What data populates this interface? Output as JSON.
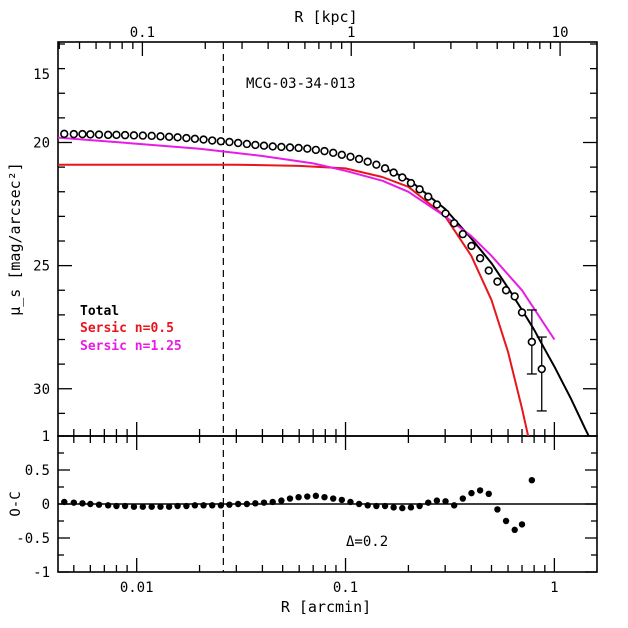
{
  "chart_data": {
    "type": "scatter",
    "title": "MCG-03-34-013",
    "top_axis": {
      "label": "R [kpc]",
      "ticks": [
        {
          "value": 0.1,
          "label": "0.1"
        },
        {
          "value": 1,
          "label": "1"
        },
        {
          "value": 10,
          "label": "10"
        }
      ]
    },
    "main": {
      "xscale": "log",
      "xlim": [
        0.0042,
        1.6
      ],
      "ylabel": "μ_s [mag/arcsec²]",
      "ylim": [
        16,
        32
      ],
      "inverted": true,
      "ytick_labels": [
        "15",
        "20",
        "25",
        "30"
      ],
      "ytick_values": [
        15,
        20,
        25,
        30
      ],
      "vline_x": 0.026,
      "legend": {
        "placement": "left",
        "entries": [
          {
            "label": "Total",
            "color": "#000000"
          },
          {
            "label": "Sersic n=0.5",
            "color": "#e8151d"
          },
          {
            "label": "Sersic n=1.25",
            "color": "#e81ce4"
          }
        ]
      },
      "series": [
        {
          "name": "Total",
          "color": "#000000",
          "x": [
            0.15,
            0.2,
            0.3,
            0.4,
            0.5,
            0.6,
            0.7,
            0.8,
            0.9,
            1.0,
            1.2,
            1.4,
            1.6
          ],
          "y": [
            21.0,
            21.5,
            22.7,
            23.9,
            24.9,
            25.9,
            26.8,
            27.6,
            28.4,
            29.1,
            30.4,
            31.6,
            32.6
          ]
        },
        {
          "name": "Sersic n=0.5",
          "color": "#e8151d",
          "x": [
            0.0042,
            0.01,
            0.03,
            0.06,
            0.1,
            0.15,
            0.2,
            0.3,
            0.4,
            0.5,
            0.6,
            0.7,
            0.8,
            0.85
          ],
          "y": [
            20.9,
            20.9,
            20.9,
            20.95,
            21.05,
            21.4,
            21.8,
            23.0,
            24.6,
            26.4,
            28.5,
            30.8,
            33.0,
            34.0
          ]
        },
        {
          "name": "Sersic n=1.25",
          "color": "#e81ce4",
          "x": [
            0.0042,
            0.01,
            0.02,
            0.04,
            0.07,
            0.1,
            0.15,
            0.2,
            0.3,
            0.4,
            0.5,
            0.7,
            1.0
          ],
          "y": [
            19.8,
            20.05,
            20.25,
            20.55,
            20.85,
            21.15,
            21.55,
            22.0,
            23.0,
            23.8,
            24.6,
            26.0,
            28.0
          ]
        }
      ],
      "points": {
        "x": [
          0.0045,
          0.005,
          0.0055,
          0.006,
          0.0066,
          0.0073,
          0.008,
          0.0088,
          0.0097,
          0.0107,
          0.0118,
          0.013,
          0.0143,
          0.0157,
          0.0173,
          0.019,
          0.0209,
          0.023,
          0.0253,
          0.0278,
          0.0306,
          0.0337,
          0.037,
          0.0407,
          0.0448,
          0.0493,
          0.0542,
          0.0596,
          0.0656,
          0.0721,
          0.0793,
          0.0873,
          0.096,
          0.1056,
          0.1161,
          0.1277,
          0.1405,
          0.1546,
          0.17,
          0.187,
          0.2057,
          0.2263,
          0.2489,
          0.2738,
          0.3012,
          0.3313,
          0.3644,
          0.4009,
          0.441,
          0.4851,
          0.5336,
          0.587,
          0.6457,
          0.7,
          0.78,
          0.87
        ],
        "y": [
          19.65,
          19.66,
          19.66,
          19.67,
          19.68,
          19.69,
          19.69,
          19.7,
          19.71,
          19.72,
          19.73,
          19.75,
          19.77,
          19.79,
          19.82,
          19.85,
          19.88,
          19.92,
          19.95,
          19.98,
          20.02,
          20.06,
          20.1,
          20.13,
          20.16,
          20.18,
          20.2,
          20.22,
          20.25,
          20.3,
          20.35,
          20.42,
          20.5,
          20.58,
          20.67,
          20.78,
          20.9,
          21.05,
          21.22,
          21.42,
          21.65,
          21.9,
          22.2,
          22.52,
          22.88,
          23.28,
          23.72,
          24.2,
          24.7,
          25.2,
          25.65,
          26.0,
          26.25,
          26.9,
          28.1,
          29.2
        ],
        "yerr_idx": [
          54,
          55
        ],
        "yerr": [
          [
            26.8,
            29.4
          ],
          [
            27.9,
            30.9
          ]
        ]
      }
    },
    "residual": {
      "ylabel": "O-C",
      "ylim": [
        -1,
        1
      ],
      "ytick_labels": [
        "1",
        "0.5",
        "0",
        "-0.5",
        "-1"
      ],
      "ytick_values": [
        1,
        0.5,
        0,
        -0.5,
        -1
      ],
      "annotation": "Δ=0.2",
      "x": [
        0.0045,
        0.005,
        0.0055,
        0.006,
        0.0066,
        0.0073,
        0.008,
        0.0088,
        0.0097,
        0.0107,
        0.0118,
        0.013,
        0.0143,
        0.0157,
        0.0173,
        0.019,
        0.0209,
        0.023,
        0.0253,
        0.0278,
        0.0306,
        0.0337,
        0.037,
        0.0407,
        0.0448,
        0.0493,
        0.0542,
        0.0596,
        0.0656,
        0.0721,
        0.0793,
        0.0873,
        0.096,
        0.1056,
        0.1161,
        0.1277,
        0.1405,
        0.1546,
        0.17,
        0.187,
        0.2057,
        0.2263,
        0.2489,
        0.2738,
        0.3012,
        0.3313,
        0.3644,
        0.4009,
        0.441,
        0.4851,
        0.5336,
        0.587,
        0.6457,
        0.7,
        0.78
      ],
      "y": [
        0.03,
        0.02,
        0.01,
        0.0,
        -0.01,
        -0.02,
        -0.03,
        -0.03,
        -0.04,
        -0.04,
        -0.04,
        -0.04,
        -0.04,
        -0.03,
        -0.03,
        -0.02,
        -0.02,
        -0.02,
        -0.02,
        -0.01,
        0.0,
        0.0,
        0.01,
        0.02,
        0.03,
        0.05,
        0.08,
        0.1,
        0.11,
        0.12,
        0.1,
        0.08,
        0.06,
        0.03,
        0.0,
        -0.02,
        -0.03,
        -0.03,
        -0.05,
        -0.06,
        -0.05,
        -0.03,
        0.02,
        0.05,
        0.04,
        -0.02,
        0.08,
        0.16,
        0.2,
        0.15,
        -0.08,
        -0.25,
        -0.38,
        -0.3,
        0.35
      ]
    },
    "xlabel": "R [arcmin]",
    "xtick_labels": [
      "0.01",
      "0.1",
      "1"
    ],
    "xtick_values": [
      0.01,
      0.1,
      1
    ]
  }
}
